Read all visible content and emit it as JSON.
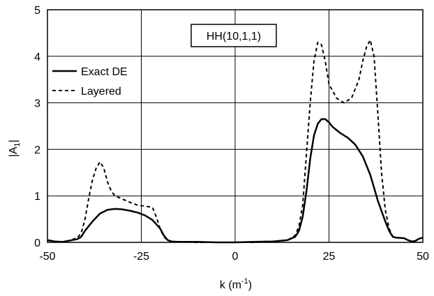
{
  "chart_data": {
    "type": "line",
    "title": "",
    "annotation": "HH(10,1,1)",
    "xlabel": {
      "main": "k (m",
      "sup": "-1",
      "tail": ")"
    },
    "ylabel": {
      "main": "|A",
      "sub": "1",
      "tail": "|"
    },
    "xlim": [
      -50,
      50
    ],
    "ylim": [
      0,
      5
    ],
    "xticks": [
      -50,
      -25,
      0,
      25,
      50
    ],
    "yticks": [
      0,
      1,
      2,
      3,
      4,
      5
    ],
    "x_tick_labels": [
      "-50",
      "-25",
      "0",
      "25",
      "50"
    ],
    "y_tick_labels": [
      "0",
      "1",
      "2",
      "3",
      "4",
      "5"
    ],
    "grid": true,
    "legend_position": "upper-left",
    "series": [
      {
        "name": "Exact DE",
        "style": "solid",
        "color": "#000000",
        "points": [
          [
            -50,
            0.05
          ],
          [
            -48,
            0.02
          ],
          [
            -46,
            0.01
          ],
          [
            -44,
            0.04
          ],
          [
            -42,
            0.07
          ],
          [
            -41,
            0.12
          ],
          [
            -40,
            0.25
          ],
          [
            -38,
            0.45
          ],
          [
            -36,
            0.62
          ],
          [
            -34,
            0.7
          ],
          [
            -32,
            0.72
          ],
          [
            -30,
            0.71
          ],
          [
            -28,
            0.68
          ],
          [
            -26,
            0.64
          ],
          [
            -24,
            0.58
          ],
          [
            -22,
            0.48
          ],
          [
            -20,
            0.3
          ],
          [
            -19,
            0.15
          ],
          [
            -18,
            0.05
          ],
          [
            -17,
            0.02
          ],
          [
            -15,
            0.01
          ],
          [
            -10,
            0.01
          ],
          [
            -5,
            0.0
          ],
          [
            0,
            0.0
          ],
          [
            5,
            0.01
          ],
          [
            10,
            0.02
          ],
          [
            14,
            0.05
          ],
          [
            16,
            0.12
          ],
          [
            17,
            0.25
          ],
          [
            18,
            0.55
          ],
          [
            19,
            1.1
          ],
          [
            20,
            1.8
          ],
          [
            21,
            2.3
          ],
          [
            22,
            2.55
          ],
          [
            23,
            2.65
          ],
          [
            24,
            2.65
          ],
          [
            25,
            2.58
          ],
          [
            26,
            2.48
          ],
          [
            28,
            2.35
          ],
          [
            30,
            2.25
          ],
          [
            32,
            2.1
          ],
          [
            34,
            1.85
          ],
          [
            36,
            1.45
          ],
          [
            38,
            0.9
          ],
          [
            40,
            0.45
          ],
          [
            41,
            0.25
          ],
          [
            42,
            0.12
          ],
          [
            43,
            0.1
          ],
          [
            45,
            0.09
          ],
          [
            46,
            0.05
          ],
          [
            47,
            0.02
          ],
          [
            48,
            0.03
          ],
          [
            49,
            0.08
          ],
          [
            50,
            0.1
          ]
        ]
      },
      {
        "name": "Layered",
        "style": "dashed",
        "color": "#000000",
        "points": [
          [
            -50,
            0.04
          ],
          [
            -48,
            0.02
          ],
          [
            -46,
            0.01
          ],
          [
            -44,
            0.04
          ],
          [
            -42,
            0.1
          ],
          [
            -41,
            0.2
          ],
          [
            -40,
            0.5
          ],
          [
            -39,
            0.95
          ],
          [
            -38,
            1.35
          ],
          [
            -37,
            1.6
          ],
          [
            -36,
            1.73
          ],
          [
            -35,
            1.6
          ],
          [
            -34,
            1.3
          ],
          [
            -33,
            1.1
          ],
          [
            -32,
            1.0
          ],
          [
            -30,
            0.93
          ],
          [
            -28,
            0.86
          ],
          [
            -26,
            0.8
          ],
          [
            -24,
            0.78
          ],
          [
            -22,
            0.75
          ],
          [
            -21,
            0.55
          ],
          [
            -20,
            0.3
          ],
          [
            -19,
            0.12
          ],
          [
            -18,
            0.05
          ],
          [
            -17,
            0.02
          ],
          [
            -15,
            0.01
          ],
          [
            -10,
            0.0
          ],
          [
            -5,
            0.0
          ],
          [
            0,
            0.0
          ],
          [
            5,
            0.0
          ],
          [
            10,
            0.02
          ],
          [
            14,
            0.05
          ],
          [
            16,
            0.15
          ],
          [
            17,
            0.35
          ],
          [
            18,
            0.8
          ],
          [
            19,
            1.9
          ],
          [
            20,
            3.0
          ],
          [
            21,
            3.9
          ],
          [
            22,
            4.3
          ],
          [
            23,
            4.25
          ],
          [
            24,
            3.9
          ],
          [
            25,
            3.4
          ],
          [
            27,
            3.1
          ],
          [
            29,
            3.0
          ],
          [
            31,
            3.1
          ],
          [
            33,
            3.5
          ],
          [
            34,
            3.9
          ],
          [
            35,
            4.2
          ],
          [
            36,
            4.35
          ],
          [
            37,
            4.0
          ],
          [
            38,
            2.8
          ],
          [
            39,
            1.5
          ],
          [
            40,
            0.7
          ],
          [
            41,
            0.3
          ],
          [
            42,
            0.12
          ],
          [
            43,
            0.1
          ],
          [
            45,
            0.09
          ],
          [
            46,
            0.05
          ],
          [
            47,
            0.02
          ],
          [
            48,
            0.03
          ],
          [
            49,
            0.08
          ],
          [
            50,
            0.1
          ]
        ]
      }
    ]
  }
}
